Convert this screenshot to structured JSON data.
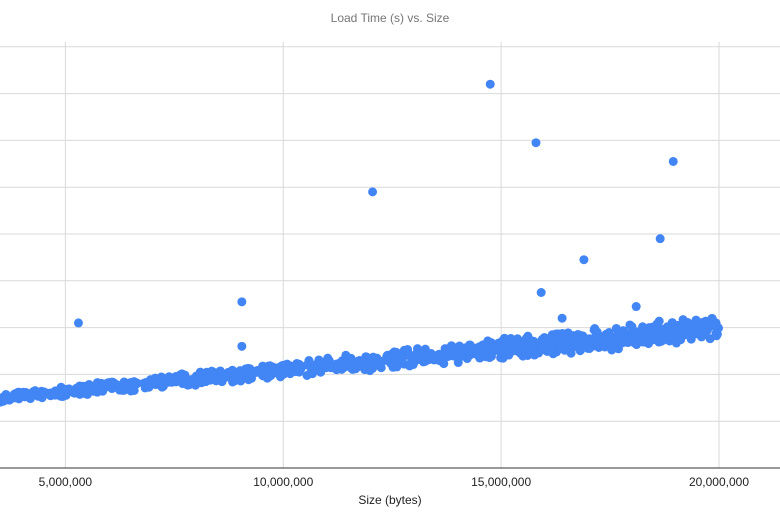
{
  "chart_data": {
    "type": "scatter",
    "title": "Load Time (s) vs. Size",
    "xlabel": "Size (bytes)",
    "ylabel": "",
    "xlim": [
      3500000,
      21400000
    ],
    "ylim": [
      0,
      10
    ],
    "x_ticks": [
      5000000,
      10000000,
      15000000,
      20000000
    ],
    "x_tick_labels": [
      "5,000,000",
      "10,000,000",
      "15,000,000",
      "20,000,000"
    ],
    "y_gridlines": [
      1,
      2,
      3,
      4,
      5,
      6,
      7,
      8,
      9
    ],
    "grid": true,
    "legend": "none",
    "colors": {
      "points": "#4285f4",
      "grid": "#d9d9d9",
      "title": "#757575",
      "axis_text": "#222222"
    },
    "series": [
      {
        "color": "#4285f4",
        "trend": {
          "x_start": 3500000,
          "y_start": 1.5,
          "x_end": 20000000,
          "y_end": 3.0,
          "spread": 0.2,
          "n_points": 1050
        },
        "outliers": [
          {
            "x": 5300000,
            "y": 3.1
          },
          {
            "x": 9050000,
            "y": 3.55
          },
          {
            "x": 12050000,
            "y": 5.9
          },
          {
            "x": 14750000,
            "y": 8.2
          },
          {
            "x": 15800000,
            "y": 6.95
          },
          {
            "x": 15920000,
            "y": 3.75
          },
          {
            "x": 16900000,
            "y": 4.45
          },
          {
            "x": 18650000,
            "y": 4.9
          },
          {
            "x": 18950000,
            "y": 6.55
          },
          {
            "x": 18100000,
            "y": 3.45
          },
          {
            "x": 16400000,
            "y": 3.2
          },
          {
            "x": 9050000,
            "y": 2.6
          }
        ]
      }
    ]
  }
}
